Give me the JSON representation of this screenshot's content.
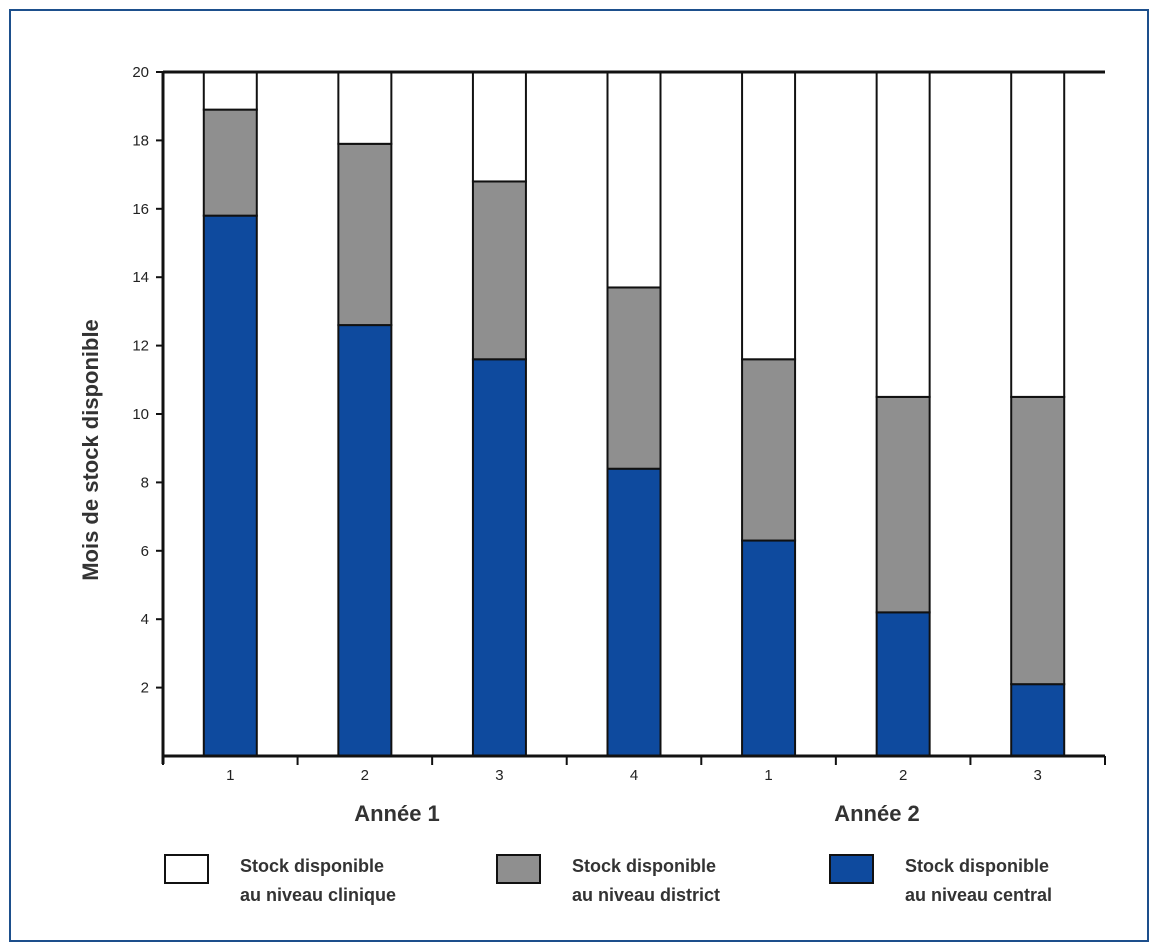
{
  "chart_data": {
    "type": "bar",
    "stacked": true,
    "ylabel": "Mois de stock disponible",
    "ylim": [
      0,
      20
    ],
    "yticks": [
      2,
      4,
      6,
      8,
      10,
      12,
      14,
      16,
      18,
      20
    ],
    "categories": [
      "1",
      "2",
      "3",
      "4",
      "1",
      "2",
      "3"
    ],
    "groups": [
      {
        "label": "Année 1",
        "span": [
          0,
          3
        ]
      },
      {
        "label": "Année 2",
        "span": [
          4,
          6
        ]
      }
    ],
    "series": [
      {
        "name_line1": "Stock disponible",
        "name_line2": "au niveau central",
        "color": "#0e4a9e",
        "values": [
          15.8,
          12.6,
          11.6,
          8.4,
          6.3,
          4.2,
          2.1
        ]
      },
      {
        "name_line1": "Stock disponible",
        "name_line2": "au niveau district",
        "color": "#8f8f8f",
        "values": [
          3.1,
          5.3,
          5.2,
          5.3,
          5.3,
          6.3,
          8.4
        ]
      },
      {
        "name_line1": "Stock disponible",
        "name_line2": "au niveau clinique",
        "color": "#ffffff",
        "values": [
          1.1,
          2.1,
          3.2,
          6.3,
          8.4,
          9.5,
          9.5
        ]
      }
    ],
    "legend_order": [
      2,
      1,
      0
    ],
    "grid": false
  }
}
